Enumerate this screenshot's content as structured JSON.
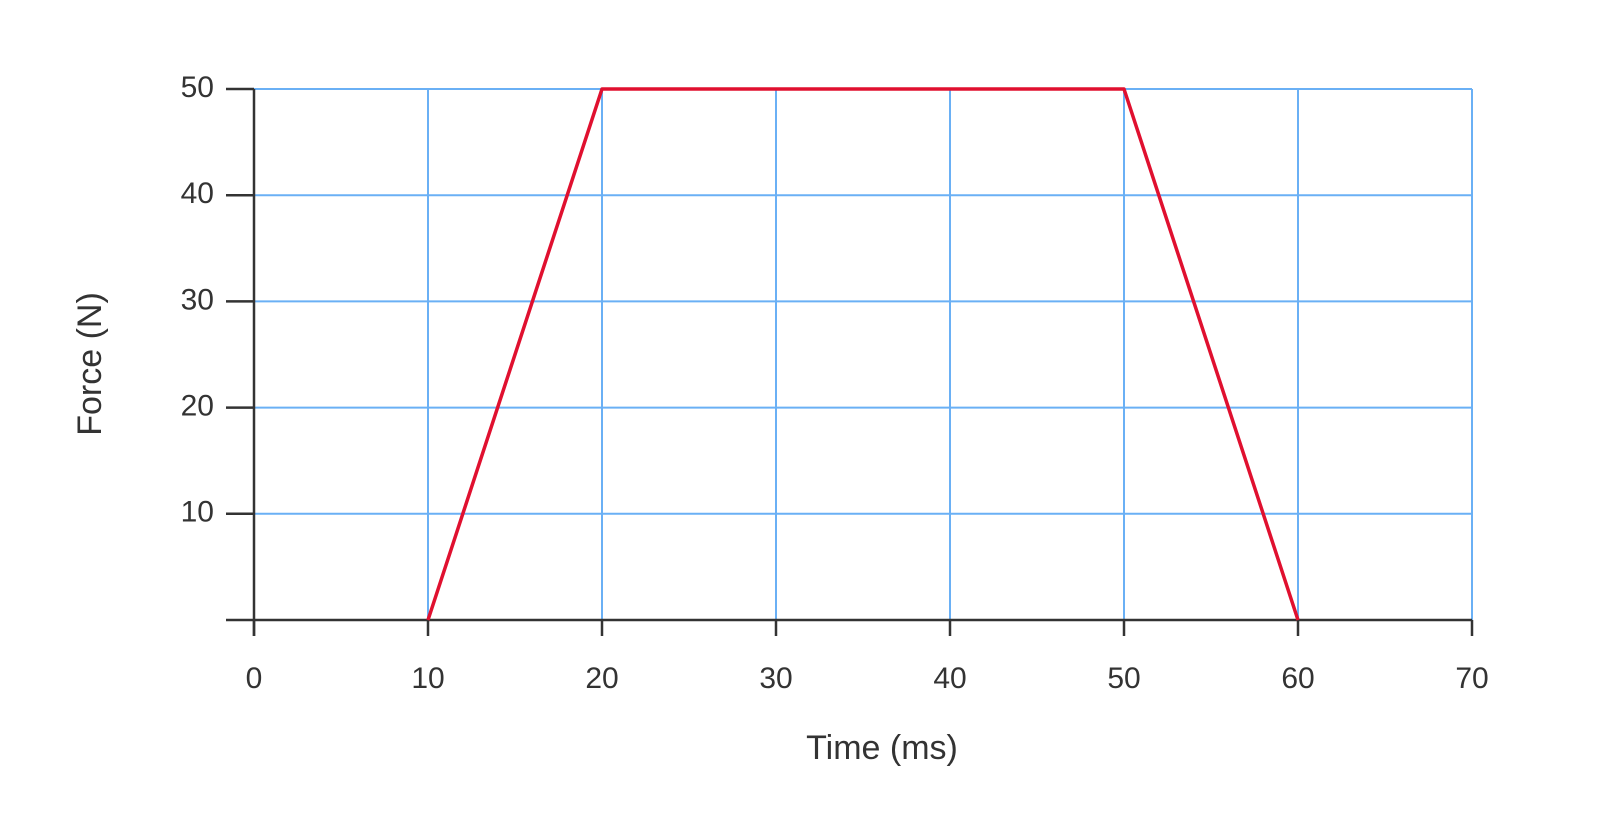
{
  "chart_data": {
    "type": "line",
    "x_label": "Time (ms)",
    "y_label": "Force (N)",
    "x": [
      10,
      20,
      50,
      60
    ],
    "series": [
      {
        "name": "Force",
        "color": "#e0102f",
        "values": [
          0,
          50,
          50,
          0
        ]
      }
    ],
    "xlim": [
      0,
      70
    ],
    "xticks": [
      0,
      10,
      20,
      30,
      40,
      50,
      60,
      70
    ],
    "ylim": [
      0,
      50
    ],
    "yticks": [
      10,
      20,
      30,
      40,
      50
    ],
    "grid": true,
    "grid_color": "#6ab0f5",
    "axis_color": "#333333"
  }
}
